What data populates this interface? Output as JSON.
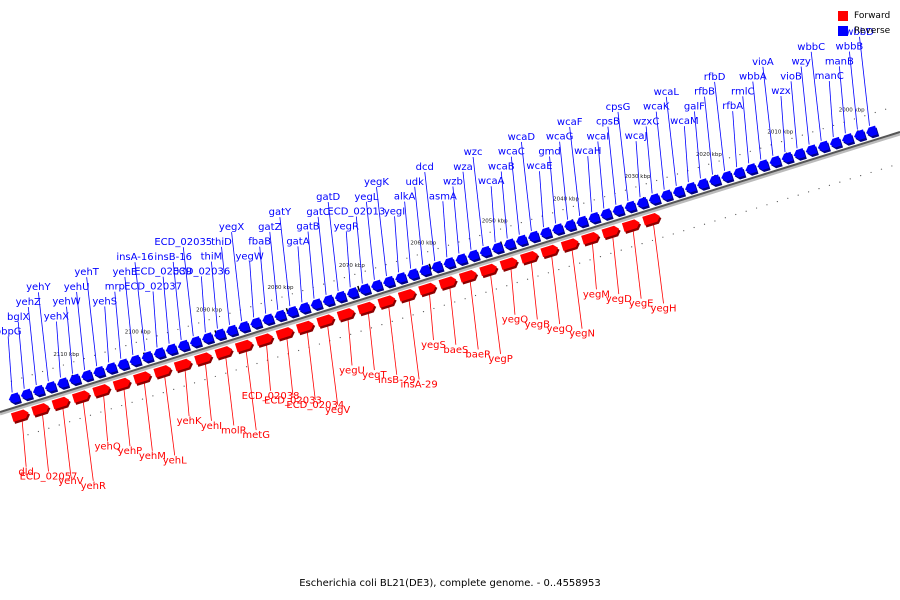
{
  "caption": "Escherichia coli BL21(DE3), complete genome. - 0..4558953",
  "legend": {
    "forward_label": "Forward",
    "reverse_label": "Reverse",
    "forward_color": "#ff0000",
    "reverse_color": "#0000ff"
  },
  "axis": {
    "unit": "kbp",
    "ticks": [
      "2110 kbp",
      "2100 kbp",
      "2090 kbp",
      "2080 kbp",
      "2070 kbp",
      "2060 kbp",
      "2050 kbp",
      "2040 kbp",
      "2030 kbp",
      "2020 kbp",
      "2010 kbp",
      "2000 kbp"
    ]
  },
  "reverse_genes": [
    "pbpG",
    "bglX",
    "yehZ",
    "yehY",
    "yehX",
    "yehW",
    "yehU",
    "yehT",
    "yehS",
    "mrp",
    "yehE",
    "insA-16",
    "ECD_02037",
    "ECD_02039",
    "insB-16",
    "ECD_02035",
    "ECD_02036",
    "thiM",
    "thiD",
    "yegX",
    "yegW",
    "fbaB",
    "gatZ",
    "gatY",
    "gatA",
    "gatB",
    "gatC",
    "gatD",
    "yegR",
    "ECD_02013",
    "yegL",
    "yegK",
    "yegI",
    "alkA",
    "udk",
    "dcd",
    "asmA",
    "wzb",
    "wza",
    "wzc",
    "wcaA",
    "wcaB",
    "wcaC",
    "wcaD",
    "wcaE",
    "gmd",
    "wcaG",
    "wcaF",
    "wcaH",
    "wcaI",
    "cpsB",
    "cpsG",
    "wcaJ",
    "wzxC",
    "wcaK",
    "wcaL",
    "wcaM",
    "galF",
    "rfbB",
    "rfbD",
    "rfbA",
    "rmlC",
    "wbbA",
    "vioA",
    "wzx",
    "vioB",
    "wzy",
    "wbbC",
    "manC",
    "manB",
    "wbbB",
    "wbbD"
  ],
  "forward_genes": [
    "dld",
    "ECD_02057",
    "yehV",
    "yehR",
    "yehQ",
    "yehP",
    "yehM",
    "yehL",
    "yehK",
    "yehI",
    "molR",
    "metG",
    "ECD_02038",
    "ECD_02033",
    "ECD_02034",
    "yegV",
    "yegU",
    "yegT",
    "insB-29",
    "insA-29",
    "yegS",
    "baeS",
    "baeR",
    "yegP",
    "yegQ",
    "yegB",
    "yegO",
    "yegN",
    "yegM",
    "yegD",
    "yegE",
    "yegH"
  ]
}
